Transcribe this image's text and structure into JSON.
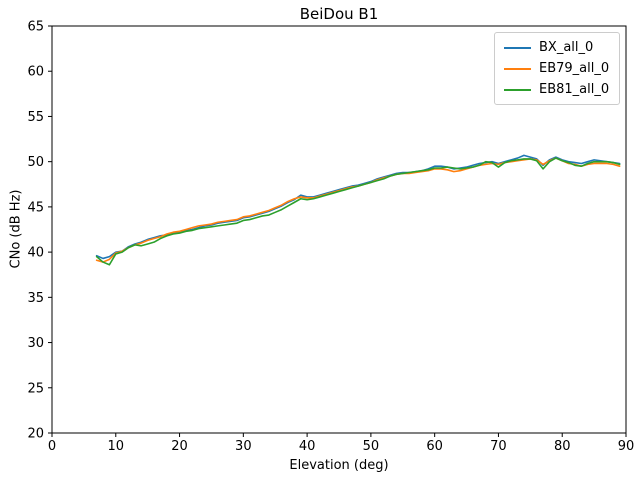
{
  "figure": {
    "background": "#ffffff",
    "spine_color": "#000000",
    "tick_color": "#000000"
  },
  "chart_data": {
    "type": "line",
    "title": "BeiDou B1",
    "xlabel": "Elevation (deg)",
    "ylabel": "CNo (dB Hz)",
    "xlim": [
      0,
      90
    ],
    "ylim": [
      20,
      65
    ],
    "xticks": [
      0,
      10,
      20,
      30,
      40,
      50,
      60,
      70,
      80,
      90
    ],
    "yticks": [
      20,
      25,
      30,
      35,
      40,
      45,
      50,
      55,
      60,
      65
    ],
    "grid": false,
    "legend_position": "upper right",
    "x": [
      7,
      8,
      9,
      10,
      11,
      12,
      13,
      14,
      15,
      16,
      17,
      18,
      19,
      20,
      21,
      22,
      23,
      24,
      25,
      26,
      27,
      28,
      29,
      30,
      31,
      32,
      33,
      34,
      35,
      36,
      37,
      38,
      39,
      40,
      41,
      42,
      43,
      44,
      45,
      46,
      47,
      48,
      49,
      50,
      51,
      52,
      53,
      54,
      55,
      56,
      57,
      58,
      59,
      60,
      61,
      62,
      63,
      64,
      65,
      66,
      67,
      68,
      69,
      70,
      71,
      72,
      73,
      74,
      75,
      76,
      77,
      78,
      79,
      80,
      81,
      82,
      83,
      84,
      85,
      86,
      87,
      88,
      89
    ],
    "series": [
      {
        "name": "BX_all_0",
        "color": "#1f77b4",
        "values": [
          39.6,
          39.3,
          39.5,
          40.0,
          40.1,
          40.6,
          40.9,
          41.1,
          41.4,
          41.6,
          41.8,
          41.9,
          42.1,
          42.2,
          42.4,
          42.5,
          42.7,
          42.9,
          43.0,
          43.2,
          43.3,
          43.4,
          43.5,
          43.8,
          43.9,
          44.1,
          44.3,
          44.5,
          44.8,
          45.1,
          45.5,
          45.8,
          46.3,
          46.1,
          46.1,
          46.3,
          46.5,
          46.7,
          46.9,
          47.1,
          47.3,
          47.4,
          47.6,
          47.8,
          48.1,
          48.3,
          48.5,
          48.7,
          48.8,
          48.8,
          48.9,
          49.0,
          49.2,
          49.5,
          49.5,
          49.4,
          49.2,
          49.3,
          49.4,
          49.6,
          49.8,
          49.9,
          50.0,
          49.8,
          50.0,
          50.2,
          50.4,
          50.7,
          50.5,
          50.3,
          49.6,
          50.2,
          50.5,
          50.2,
          50.0,
          49.9,
          49.8,
          50.0,
          50.2,
          50.1,
          50.0,
          49.9,
          49.8
        ]
      },
      {
        "name": "EB79_all_0",
        "color": "#ff7f0e",
        "values": [
          39.1,
          38.9,
          39.2,
          39.9,
          40.1,
          40.5,
          40.8,
          41.0,
          41.3,
          41.5,
          41.7,
          42.0,
          42.2,
          42.3,
          42.5,
          42.7,
          42.9,
          43.0,
          43.1,
          43.3,
          43.4,
          43.5,
          43.6,
          43.9,
          44.0,
          44.2,
          44.4,
          44.6,
          44.9,
          45.2,
          45.6,
          45.9,
          46.1,
          46.0,
          46.0,
          46.2,
          46.4,
          46.6,
          46.8,
          47.0,
          47.2,
          47.3,
          47.5,
          47.7,
          48.0,
          48.2,
          48.4,
          48.6,
          48.7,
          48.7,
          48.8,
          48.9,
          49.0,
          49.2,
          49.2,
          49.1,
          48.9,
          49.0,
          49.2,
          49.4,
          49.6,
          49.7,
          49.8,
          49.7,
          49.9,
          50.0,
          50.1,
          50.2,
          50.3,
          50.2,
          49.7,
          50.1,
          50.4,
          50.1,
          49.8,
          49.7,
          49.5,
          49.7,
          49.8,
          49.8,
          49.8,
          49.7,
          49.5
        ]
      },
      {
        "name": "EB81_all_0",
        "color": "#2ca02c",
        "values": [
          39.5,
          38.9,
          38.6,
          39.8,
          40.0,
          40.5,
          40.8,
          40.7,
          40.9,
          41.1,
          41.5,
          41.8,
          42.0,
          42.1,
          42.3,
          42.4,
          42.6,
          42.7,
          42.8,
          42.9,
          43.0,
          43.1,
          43.2,
          43.5,
          43.6,
          43.8,
          44.0,
          44.1,
          44.4,
          44.7,
          45.1,
          45.5,
          45.9,
          45.8,
          45.9,
          46.1,
          46.3,
          46.5,
          46.7,
          46.9,
          47.1,
          47.3,
          47.5,
          47.7,
          47.9,
          48.1,
          48.4,
          48.6,
          48.7,
          48.8,
          48.9,
          49.0,
          49.1,
          49.3,
          49.3,
          49.4,
          49.3,
          49.2,
          49.3,
          49.4,
          49.6,
          50.0,
          49.9,
          49.4,
          49.9,
          50.1,
          50.2,
          50.3,
          50.3,
          50.1,
          49.2,
          50.0,
          50.4,
          50.1,
          49.9,
          49.6,
          49.5,
          49.8,
          50.0,
          50.0,
          50.0,
          49.9,
          49.7
        ]
      }
    ]
  }
}
